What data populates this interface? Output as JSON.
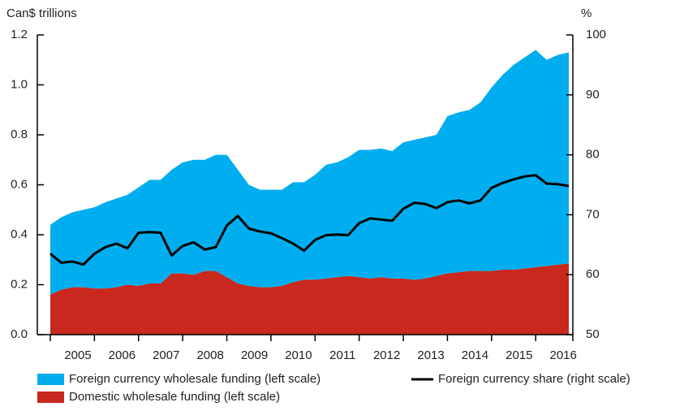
{
  "chart_data": {
    "type": "stacked-area-line",
    "ylabel": "Can$ trillions",
    "y2label": "%",
    "categories": [
      null,
      null,
      "2005",
      null,
      null,
      null,
      "2006",
      null,
      null,
      null,
      "2007",
      null,
      null,
      null,
      "2008",
      null,
      null,
      null,
      "2009",
      null,
      null,
      null,
      "2010",
      null,
      null,
      null,
      "2011",
      null,
      null,
      null,
      "2012",
      null,
      null,
      null,
      "2013",
      null,
      null,
      null,
      "2014",
      null,
      null,
      null,
      "2015",
      null,
      null,
      null,
      "2016",
      null
    ],
    "series": [
      {
        "name": "Domestic wholesale funding (left scale)",
        "color": "#c8281e",
        "stack": true,
        "values": [
          0.16,
          0.18,
          0.19,
          0.19,
          0.185,
          0.185,
          0.19,
          0.2,
          0.195,
          0.205,
          0.205,
          0.245,
          0.245,
          0.24,
          0.255,
          0.255,
          0.23,
          0.205,
          0.195,
          0.19,
          0.19,
          0.195,
          0.21,
          0.22,
          0.22,
          0.225,
          0.23,
          0.235,
          0.23,
          0.225,
          0.23,
          0.225,
          0.225,
          0.22,
          0.225,
          0.235,
          0.245,
          0.25,
          0.255,
          0.255,
          0.255,
          0.26,
          0.26,
          0.265,
          0.27,
          0.275,
          0.28,
          0.285
        ]
      },
      {
        "name": "Foreign currency wholesale funding (left scale)",
        "color": "#00aeef",
        "stack": true,
        "values": [
          0.28,
          0.29,
          0.3,
          0.31,
          0.325,
          0.345,
          0.355,
          0.36,
          0.395,
          0.415,
          0.415,
          0.415,
          0.445,
          0.46,
          0.445,
          0.465,
          0.49,
          0.455,
          0.405,
          0.39,
          0.39,
          0.385,
          0.4,
          0.39,
          0.42,
          0.455,
          0.46,
          0.475,
          0.51,
          0.515,
          0.515,
          0.51,
          0.545,
          0.56,
          0.565,
          0.565,
          0.63,
          0.64,
          0.645,
          0.675,
          0.735,
          0.78,
          0.82,
          0.845,
          0.87,
          0.825,
          0.84,
          0.845
        ]
      },
      {
        "name": "Foreign currency share (right scale)",
        "color": "#000000",
        "axis": "y2",
        "values": [
          63.5,
          62,
          62.2,
          61.7,
          63.5,
          64.6,
          65.2,
          64.4,
          67,
          67.1,
          67,
          63.2,
          64.8,
          65.4,
          64.2,
          64.6,
          68.2,
          69.8,
          67.7,
          67.2,
          66.9,
          66.1,
          65.2,
          64,
          65.8,
          66.6,
          66.7,
          66.6,
          68.6,
          69.4,
          69.2,
          69,
          71,
          72,
          71.8,
          71.1,
          72.1,
          72.4,
          71.9,
          72.4,
          74.5,
          75.3,
          75.9,
          76.4,
          76.6,
          75.2,
          75.1,
          74.8
        ]
      }
    ],
    "ylim": [
      0,
      1.2
    ],
    "yticks": [
      {
        "value": 0,
        "label": "0.0"
      },
      0.2,
      0.4,
      0.6,
      0.8,
      {
        "value": 1,
        "label": "1.0"
      },
      1.2
    ],
    "y2lim": [
      50,
      100
    ],
    "y2ticks": [
      50,
      60,
      70,
      80,
      90,
      100
    ]
  }
}
